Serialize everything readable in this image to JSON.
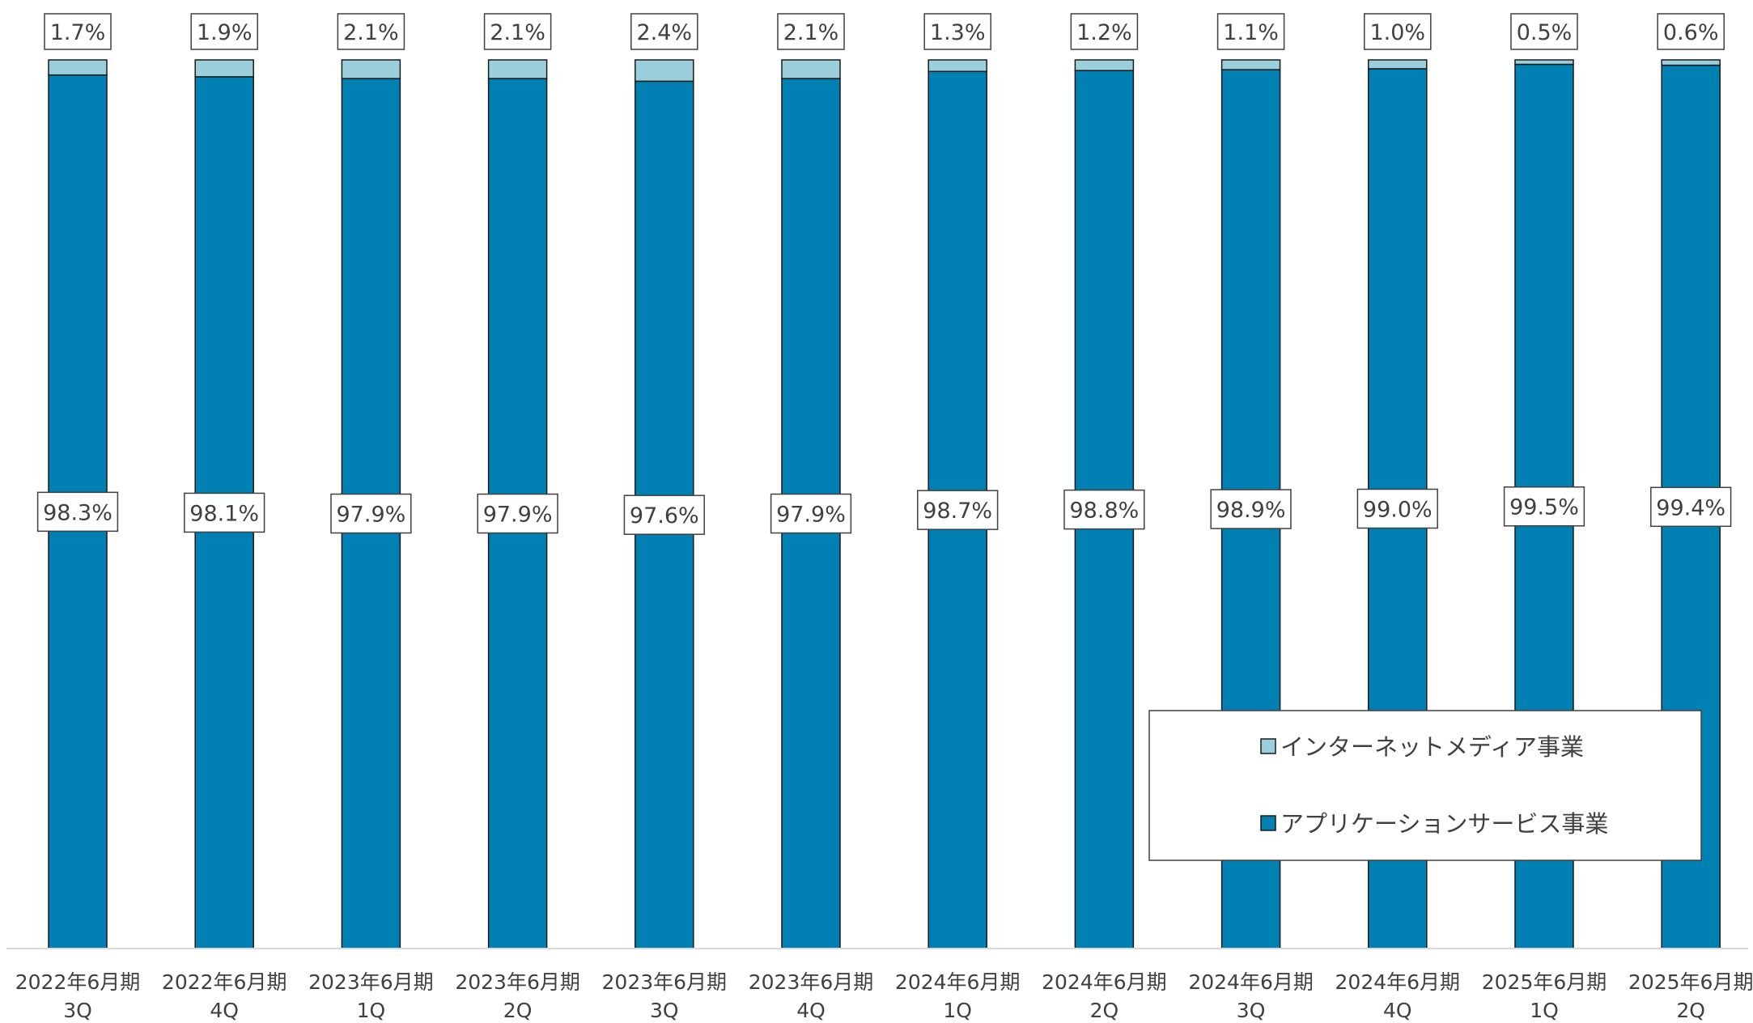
{
  "chart_data": {
    "type": "bar",
    "stacked": true,
    "normalized_percent": true,
    "categories": [
      [
        "2022年6月期",
        "3Q"
      ],
      [
        "2022年6月期",
        "4Q"
      ],
      [
        "2023年6月期",
        "1Q"
      ],
      [
        "2023年6月期",
        "2Q"
      ],
      [
        "2023年6月期",
        "3Q"
      ],
      [
        "2023年6月期",
        "4Q"
      ],
      [
        "2024年6月期",
        "1Q"
      ],
      [
        "2024年6月期",
        "2Q"
      ],
      [
        "2024年6月期",
        "3Q"
      ],
      [
        "2024年6月期",
        "4Q"
      ],
      [
        "2025年6月期",
        "1Q"
      ],
      [
        "2025年6月期",
        "2Q"
      ]
    ],
    "series": [
      {
        "name": "アプリケーションサービス事業",
        "color": "#0080b3",
        "values": [
          98.3,
          98.1,
          97.9,
          97.9,
          97.6,
          97.9,
          98.7,
          98.8,
          98.9,
          99.0,
          99.5,
          99.4
        ],
        "labels": [
          "98.3%",
          "98.1%",
          "97.9%",
          "97.9%",
          "97.6%",
          "97.9%",
          "98.7%",
          "98.8%",
          "98.9%",
          "99.0%",
          "99.5%",
          "99.4%"
        ]
      },
      {
        "name": "インターネットメディア事業",
        "color": "#9ccfdc",
        "values": [
          1.7,
          1.9,
          2.1,
          2.1,
          2.4,
          2.1,
          1.3,
          1.2,
          1.1,
          1.0,
          0.5,
          0.6
        ],
        "labels": [
          "1.7%",
          "1.9%",
          "2.1%",
          "2.1%",
          "2.4%",
          "2.1%",
          "1.3%",
          "1.2%",
          "1.1%",
          "1.0%",
          "0.5%",
          "0.6%"
        ]
      }
    ],
    "ylim": [
      0,
      100
    ],
    "grid": false,
    "legend": {
      "position": "bottom-right",
      "order": [
        "インターネットメディア事業",
        "アプリケーションサービス事業"
      ]
    }
  }
}
